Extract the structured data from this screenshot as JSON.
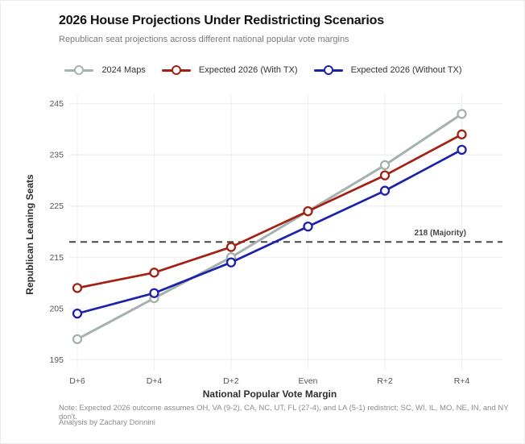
{
  "header": {
    "title": "2026 House Projections Under Redistricting Scenarios",
    "subtitle": "Republican seat projections across different national popular vote margins"
  },
  "chart_data": {
    "type": "line",
    "categories": [
      "D+6",
      "D+4",
      "D+2",
      "Even",
      "R+2",
      "R+4"
    ],
    "series": [
      {
        "name": "2024 Maps",
        "color": "#a5b1ae",
        "values": [
          199,
          207,
          215,
          224,
          233,
          243
        ]
      },
      {
        "name": "Expected 2026 (With TX)",
        "color": "#a32015",
        "values": [
          209,
          212,
          217,
          224,
          231,
          239
        ]
      },
      {
        "name": "Expected 2026 (Without TX)",
        "color": "#1c22a9",
        "values": [
          204,
          208,
          214,
          221,
          228,
          236
        ]
      }
    ],
    "xlabel": "National Popular Vote Margin",
    "ylabel": "Republican Leaning Seats",
    "yticks": [
      195,
      205,
      215,
      225,
      235,
      245
    ],
    "ylim": [
      193,
      247
    ],
    "majority_line": {
      "value": 218,
      "label": "218 (Majority)"
    },
    "grid": true,
    "legend_position": "top"
  },
  "footnote": {
    "line1": "Note: Expected 2026 outcome assumes OH, VA (9-2), CA, NC, UT, FL (27-4), and LA (5-1) redistrict; SC, WI, IL, MO, NE, IN, and NY don't.",
    "line2": "Analysis by Zachary Donnini"
  }
}
